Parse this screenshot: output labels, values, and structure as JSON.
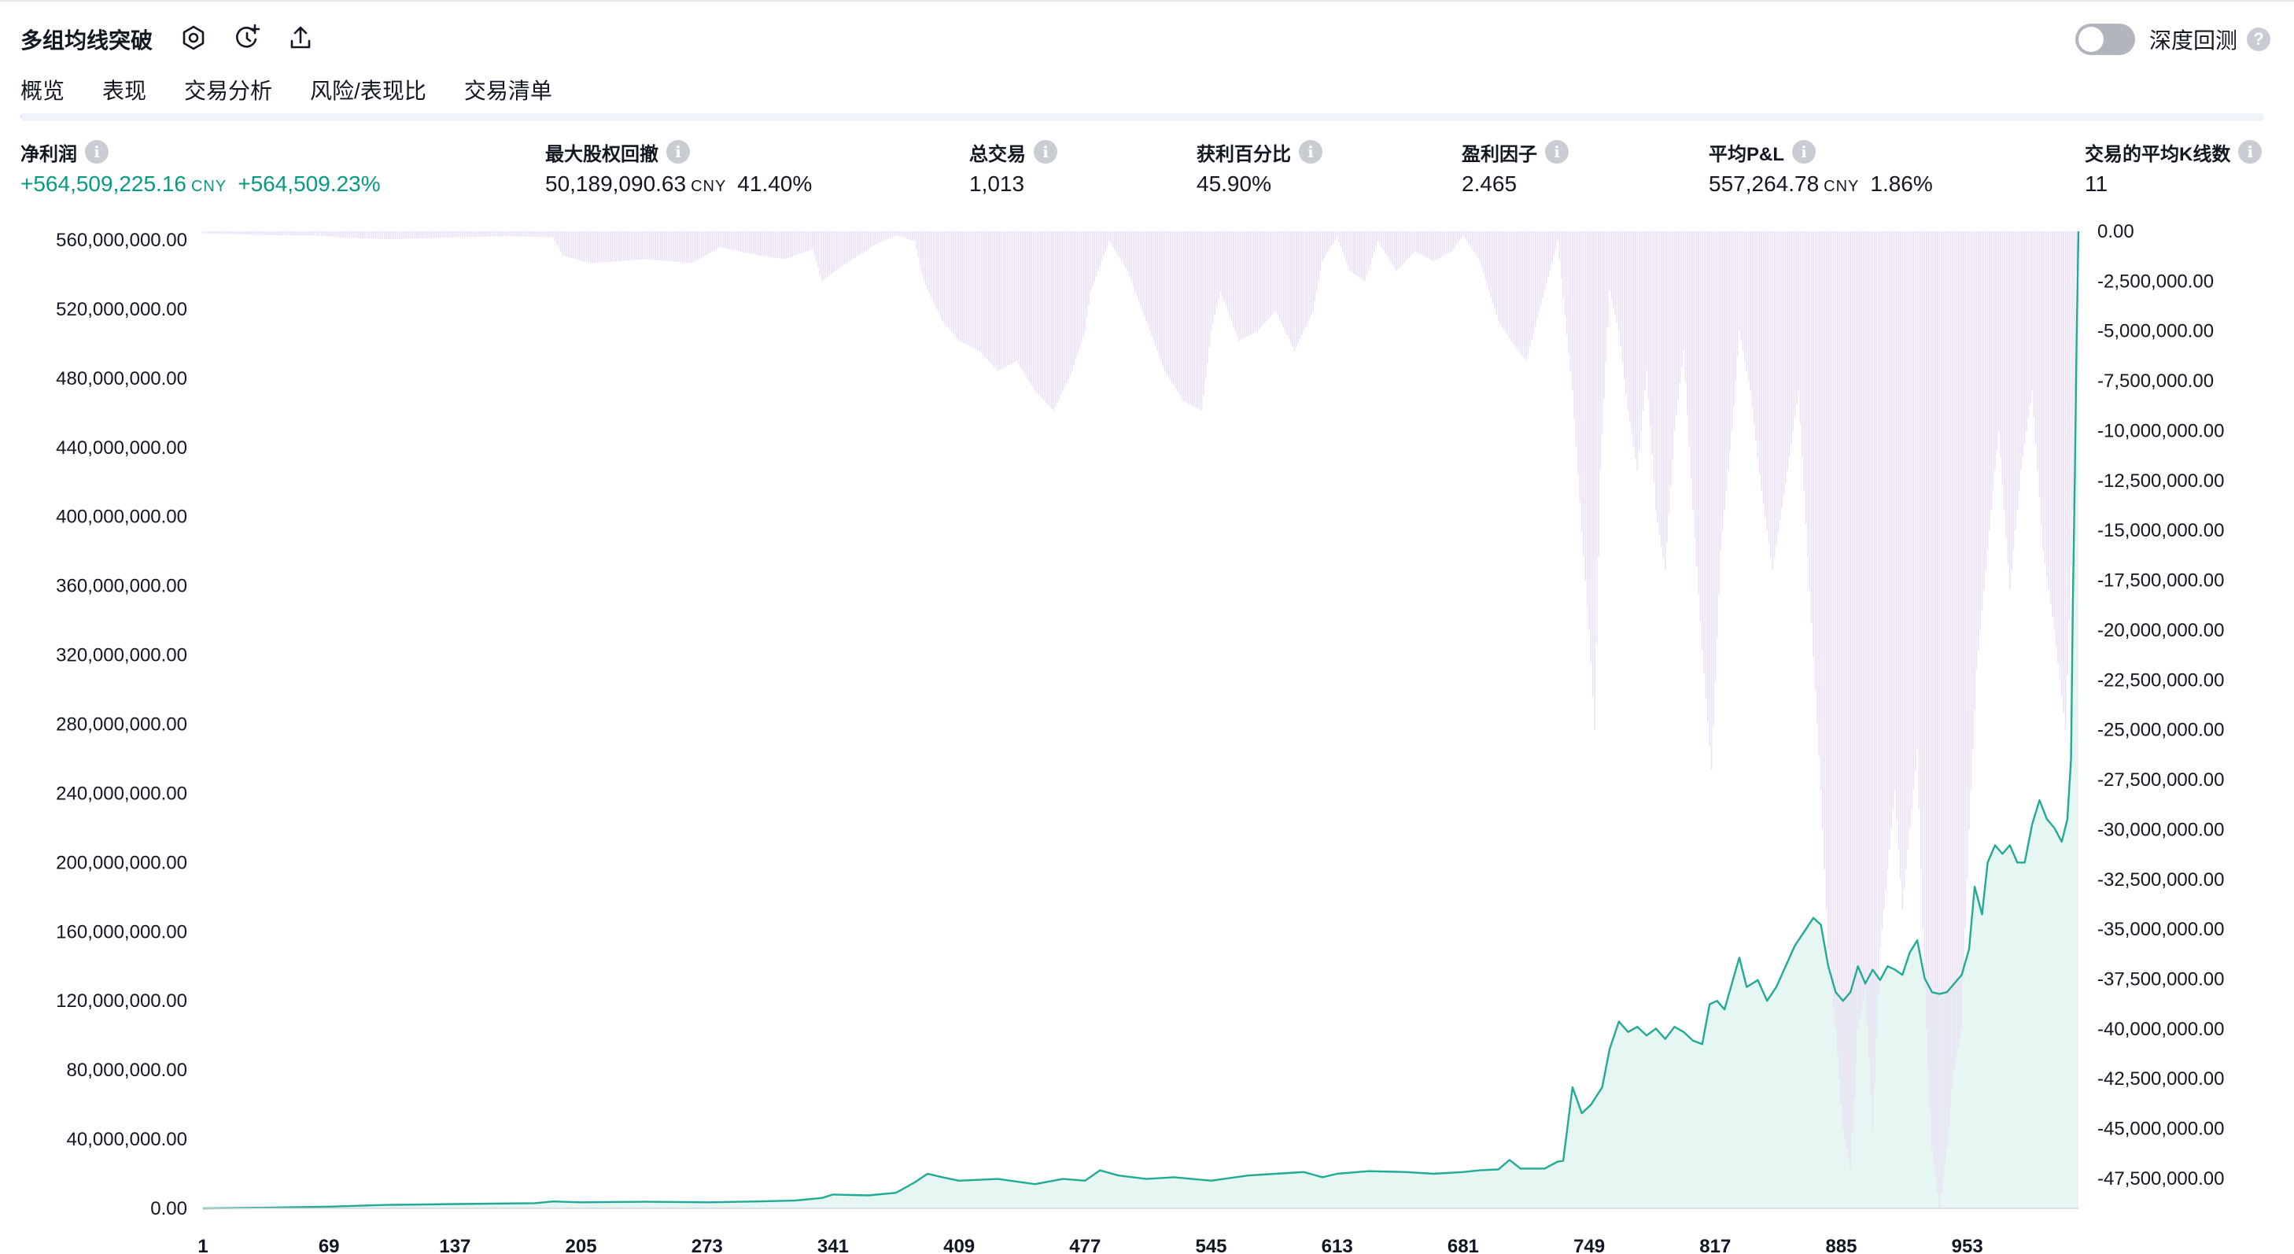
{
  "header": {
    "title": "多组均线突破",
    "toggle_label": "深度回测",
    "help_glyph": "?",
    "icons": [
      "settings-icon",
      "add-alert-icon",
      "export-icon"
    ]
  },
  "tabs": [
    {
      "label": "概览",
      "active": true
    },
    {
      "label": "表现",
      "active": false
    },
    {
      "label": "交易分析",
      "active": false
    },
    {
      "label": "风险/表现比",
      "active": false
    },
    {
      "label": "交易清单",
      "active": false
    }
  ],
  "metrics": {
    "net_profit": {
      "label": "净利润",
      "value": "+564,509,225.16",
      "currency": "CNY",
      "percent": "+564,509.23%"
    },
    "max_drawdown": {
      "label": "最大股权回撤",
      "value": "50,189,090.63",
      "currency": "CNY",
      "percent": "41.40%"
    },
    "total_trades": {
      "label": "总交易",
      "value": "1,013"
    },
    "percent_profitable": {
      "label": "获利百分比",
      "value": "45.90%"
    },
    "profit_factor": {
      "label": "盈利因子",
      "value": "2.465"
    },
    "avg_pnl": {
      "label": "平均P&L",
      "value": "557,264.78",
      "currency": "CNY",
      "percent": "1.86%"
    },
    "avg_bars": {
      "label": "交易的平均K线数",
      "value": "11"
    }
  },
  "info_glyph": "i",
  "colors": {
    "accent_green": "#089981",
    "equity_line": "#22ab94",
    "equity_fill": "#e6f6f2",
    "drawdown_fill": "#e9ddf4",
    "text": "#131722"
  },
  "chart_data": {
    "type": "area",
    "x_ticks": [
      "1",
      "69",
      "137",
      "205",
      "273",
      "341",
      "409",
      "477",
      "545",
      "613",
      "681",
      "749",
      "817",
      "885",
      "953"
    ],
    "x_range": [
      1,
      1013
    ],
    "y_left": {
      "ticks": [
        "0.00",
        "40,000,000.00",
        "80,000,000.00",
        "120,000,000.00",
        "160,000,000.00",
        "200,000,000.00",
        "240,000,000.00",
        "280,000,000.00",
        "320,000,000.00",
        "360,000,000.00",
        "400,000,000.00",
        "440,000,000.00",
        "480,000,000.00",
        "520,000,000.00",
        "560,000,000.00"
      ],
      "range": [
        0,
        565000000
      ]
    },
    "y_right": {
      "ticks": [
        "0.00",
        "-2,500,000.00",
        "-5,000,000.00",
        "-7,500,000.00",
        "-10,000,000.00",
        "-12,500,000.00",
        "-15,000,000.00",
        "-17,500,000.00",
        "-20,000,000.00",
        "-22,500,000.00",
        "-25,000,000.00",
        "-27,500,000.00",
        "-30,000,000.00",
        "-32,500,000.00",
        "-35,000,000.00",
        "-37,500,000.00",
        "-40,000,000.00",
        "-42,500,000.00",
        "-45,000,000.00",
        "-47,500,000.00"
      ],
      "range": [
        -49000000,
        0
      ]
    },
    "series": [
      {
        "kind": "equity",
        "axis": "left",
        "points": [
          [
            1,
            0
          ],
          [
            40,
            500000
          ],
          [
            69,
            1000000
          ],
          [
            100,
            2000000
          ],
          [
            137,
            2500000
          ],
          [
            180,
            3000000
          ],
          [
            190,
            4000000
          ],
          [
            205,
            3500000
          ],
          [
            240,
            3800000
          ],
          [
            273,
            3500000
          ],
          [
            300,
            4000000
          ],
          [
            320,
            4500000
          ],
          [
            335,
            6000000
          ],
          [
            341,
            8000000
          ],
          [
            360,
            7500000
          ],
          [
            375,
            9000000
          ],
          [
            385,
            15000000
          ],
          [
            392,
            20000000
          ],
          [
            400,
            18000000
          ],
          [
            409,
            16000000
          ],
          [
            430,
            17000000
          ],
          [
            450,
            14000000
          ],
          [
            465,
            17000000
          ],
          [
            477,
            16000000
          ],
          [
            485,
            22000000
          ],
          [
            495,
            19000000
          ],
          [
            510,
            17000000
          ],
          [
            525,
            18000000
          ],
          [
            545,
            16000000
          ],
          [
            565,
            19000000
          ],
          [
            580,
            20000000
          ],
          [
            595,
            21000000
          ],
          [
            605,
            18000000
          ],
          [
            613,
            20000000
          ],
          [
            630,
            21500000
          ],
          [
            650,
            21000000
          ],
          [
            665,
            20000000
          ],
          [
            681,
            21000000
          ],
          [
            690,
            22000000
          ],
          [
            700,
            22500000
          ],
          [
            706,
            28000000
          ],
          [
            712,
            23000000
          ],
          [
            725,
            23000000
          ],
          [
            732,
            27000000
          ],
          [
            735,
            27500000
          ],
          [
            740,
            70000000
          ],
          [
            745,
            55000000
          ],
          [
            750,
            60000000
          ],
          [
            756,
            70000000
          ],
          [
            760,
            92000000
          ],
          [
            765,
            108000000
          ],
          [
            770,
            102000000
          ],
          [
            775,
            105000000
          ],
          [
            780,
            100000000
          ],
          [
            785,
            104000000
          ],
          [
            790,
            98000000
          ],
          [
            795,
            105000000
          ],
          [
            800,
            102000000
          ],
          [
            805,
            97000000
          ],
          [
            810,
            95000000
          ],
          [
            814,
            118000000
          ],
          [
            818,
            120000000
          ],
          [
            822,
            115000000
          ],
          [
            826,
            130000000
          ],
          [
            830,
            145000000
          ],
          [
            834,
            128000000
          ],
          [
            840,
            132000000
          ],
          [
            845,
            120000000
          ],
          [
            850,
            128000000
          ],
          [
            855,
            140000000
          ],
          [
            860,
            152000000
          ],
          [
            865,
            160000000
          ],
          [
            870,
            168000000
          ],
          [
            874,
            164000000
          ],
          [
            878,
            140000000
          ],
          [
            882,
            125000000
          ],
          [
            886,
            120000000
          ],
          [
            890,
            125000000
          ],
          [
            894,
            140000000
          ],
          [
            898,
            130000000
          ],
          [
            902,
            138000000
          ],
          [
            906,
            132000000
          ],
          [
            910,
            140000000
          ],
          [
            914,
            138000000
          ],
          [
            918,
            135000000
          ],
          [
            922,
            148000000
          ],
          [
            926,
            155000000
          ],
          [
            930,
            133000000
          ],
          [
            934,
            125000000
          ],
          [
            938,
            124000000
          ],
          [
            942,
            125000000
          ],
          [
            946,
            130000000
          ],
          [
            950,
            135000000
          ],
          [
            954,
            150000000
          ],
          [
            957,
            186000000
          ],
          [
            961,
            170000000
          ],
          [
            964,
            200000000
          ],
          [
            968,
            210000000
          ],
          [
            972,
            205000000
          ],
          [
            976,
            210000000
          ],
          [
            980,
            200000000
          ],
          [
            984,
            200000000
          ],
          [
            988,
            222000000
          ],
          [
            992,
            236000000
          ],
          [
            996,
            225000000
          ],
          [
            1000,
            220000000
          ],
          [
            1004,
            212000000
          ],
          [
            1007,
            225000000
          ],
          [
            1009,
            260000000
          ],
          [
            1010,
            350000000
          ],
          [
            1011,
            420000000
          ],
          [
            1012,
            500000000
          ],
          [
            1013,
            565000000
          ]
        ]
      },
      {
        "kind": "drawdown",
        "axis": "right",
        "points": [
          [
            1,
            -100000
          ],
          [
            40,
            -200000
          ],
          [
            60,
            -200000
          ],
          [
            75,
            -300000
          ],
          [
            100,
            -400000
          ],
          [
            137,
            -300000
          ],
          [
            165,
            -250000
          ],
          [
            190,
            -300000
          ],
          [
            195,
            -1200000
          ],
          [
            210,
            -1600000
          ],
          [
            240,
            -1400000
          ],
          [
            265,
            -1600000
          ],
          [
            280,
            -800000
          ],
          [
            300,
            -1200000
          ],
          [
            315,
            -1400000
          ],
          [
            330,
            -900000
          ],
          [
            335,
            -2500000
          ],
          [
            345,
            -1800000
          ],
          [
            355,
            -1200000
          ],
          [
            365,
            -600000
          ],
          [
            375,
            -200000
          ],
          [
            385,
            -500000
          ],
          [
            390,
            -2500000
          ],
          [
            400,
            -4500000
          ],
          [
            409,
            -5500000
          ],
          [
            420,
            -6000000
          ],
          [
            430,
            -7000000
          ],
          [
            440,
            -6500000
          ],
          [
            450,
            -8000000
          ],
          [
            460,
            -9000000
          ],
          [
            470,
            -7000000
          ],
          [
            477,
            -5000000
          ],
          [
            480,
            -3000000
          ],
          [
            490,
            -500000
          ],
          [
            500,
            -2000000
          ],
          [
            510,
            -4500000
          ],
          [
            520,
            -7000000
          ],
          [
            530,
            -8500000
          ],
          [
            540,
            -9000000
          ],
          [
            545,
            -5000000
          ],
          [
            550,
            -3000000
          ],
          [
            560,
            -5500000
          ],
          [
            570,
            -5000000
          ],
          [
            580,
            -4000000
          ],
          [
            590,
            -6000000
          ],
          [
            600,
            -4000000
          ],
          [
            605,
            -1500000
          ],
          [
            613,
            -300000
          ],
          [
            620,
            -2000000
          ],
          [
            628,
            -2500000
          ],
          [
            635,
            -500000
          ],
          [
            645,
            -2000000
          ],
          [
            655,
            -1000000
          ],
          [
            665,
            -1500000
          ],
          [
            675,
            -1000000
          ],
          [
            681,
            -200000
          ],
          [
            690,
            -1500000
          ],
          [
            700,
            -4500000
          ],
          [
            707,
            -5500000
          ],
          [
            715,
            -6500000
          ],
          [
            725,
            -3000000
          ],
          [
            732,
            -500000
          ],
          [
            740,
            -8000000
          ],
          [
            745,
            -15000000
          ],
          [
            749,
            -20000000
          ],
          [
            752,
            -25000000
          ],
          [
            755,
            -12000000
          ],
          [
            760,
            -3000000
          ],
          [
            765,
            -5000000
          ],
          [
            770,
            -9000000
          ],
          [
            775,
            -12000000
          ],
          [
            780,
            -7000000
          ],
          [
            785,
            -14000000
          ],
          [
            790,
            -17000000
          ],
          [
            795,
            -10000000
          ],
          [
            800,
            -6000000
          ],
          [
            805,
            -14000000
          ],
          [
            810,
            -21000000
          ],
          [
            815,
            -27000000
          ],
          [
            820,
            -16000000
          ],
          [
            826,
            -10000000
          ],
          [
            830,
            -5000000
          ],
          [
            836,
            -8000000
          ],
          [
            842,
            -13000000
          ],
          [
            848,
            -17000000
          ],
          [
            856,
            -12000000
          ],
          [
            862,
            -8000000
          ],
          [
            868,
            -18000000
          ],
          [
            874,
            -28000000
          ],
          [
            878,
            -36000000
          ],
          [
            882,
            -40000000
          ],
          [
            886,
            -45000000
          ],
          [
            890,
            -47000000
          ],
          [
            894,
            -40000000
          ],
          [
            898,
            -38000000
          ],
          [
            902,
            -45000000
          ],
          [
            906,
            -36000000
          ],
          [
            910,
            -32000000
          ],
          [
            914,
            -28000000
          ],
          [
            918,
            -34000000
          ],
          [
            922,
            -30000000
          ],
          [
            926,
            -26000000
          ],
          [
            930,
            -38000000
          ],
          [
            934,
            -46000000
          ],
          [
            938,
            -49000000
          ],
          [
            942,
            -46000000
          ],
          [
            946,
            -42000000
          ],
          [
            950,
            -40000000
          ],
          [
            954,
            -30000000
          ],
          [
            958,
            -22000000
          ],
          [
            962,
            -18000000
          ],
          [
            966,
            -14000000
          ],
          [
            970,
            -10000000
          ],
          [
            976,
            -18000000
          ],
          [
            982,
            -12000000
          ],
          [
            988,
            -8000000
          ],
          [
            994,
            -16000000
          ],
          [
            1000,
            -20000000
          ],
          [
            1006,
            -25000000
          ],
          [
            1010,
            -14000000
          ],
          [
            1012,
            -2000000
          ],
          [
            1013,
            0
          ]
        ]
      }
    ],
    "grid": false,
    "legend": "none"
  }
}
